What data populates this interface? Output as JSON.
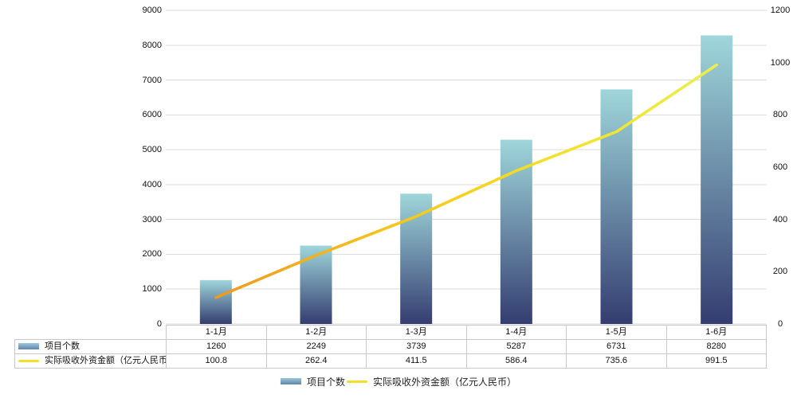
{
  "chart_data": {
    "type": "combo-bar-line",
    "title": "",
    "categories": [
      "1-1月",
      "1-2月",
      "1-3月",
      "1-4月",
      "1-5月",
      "1-6月"
    ],
    "series": [
      {
        "name": "项目个数",
        "type": "bar",
        "axis": "left",
        "values": [
          1260,
          2249,
          3739,
          5287,
          6731,
          8280
        ]
      },
      {
        "name": "实际吸收外资金额（亿元人民币）",
        "type": "line",
        "axis": "right",
        "values": [
          100.8,
          262.4,
          411.5,
          586.4,
          735.6,
          991.5
        ]
      }
    ],
    "axes": {
      "left": {
        "min": 0,
        "max": 9000,
        "step": 1000,
        "tick_labels": [
          "0",
          "1000",
          "2000",
          "3000",
          "4000",
          "5000",
          "6000",
          "7000",
          "8000",
          "9000"
        ]
      },
      "right": {
        "min": 0,
        "max": 1200,
        "step": 200,
        "tick_labels": [
          "0",
          "200",
          "400",
          "600",
          "800",
          "1000",
          "1200"
        ]
      }
    },
    "grid": true,
    "legend_position": "bottom"
  },
  "colors": {
    "background": "#ffffff",
    "grid_line": "#dbdbdb",
    "bar_gradient_top": "#9fd6da",
    "bar_gradient_bottom": "#343d70",
    "line_gradient_start": "#f0991b",
    "line_gradient_mid1": "#f5c51d",
    "line_gradient_mid2": "#f4df25",
    "line_gradient_end": "#e9ee4d",
    "table_border": "#c8c8c8",
    "text": "#111111",
    "legend_bar_swatch_top": "#9cc6da",
    "legend_bar_swatch_bottom": "#5f86ac",
    "legend_line_swatch": "#f6dd2b"
  }
}
